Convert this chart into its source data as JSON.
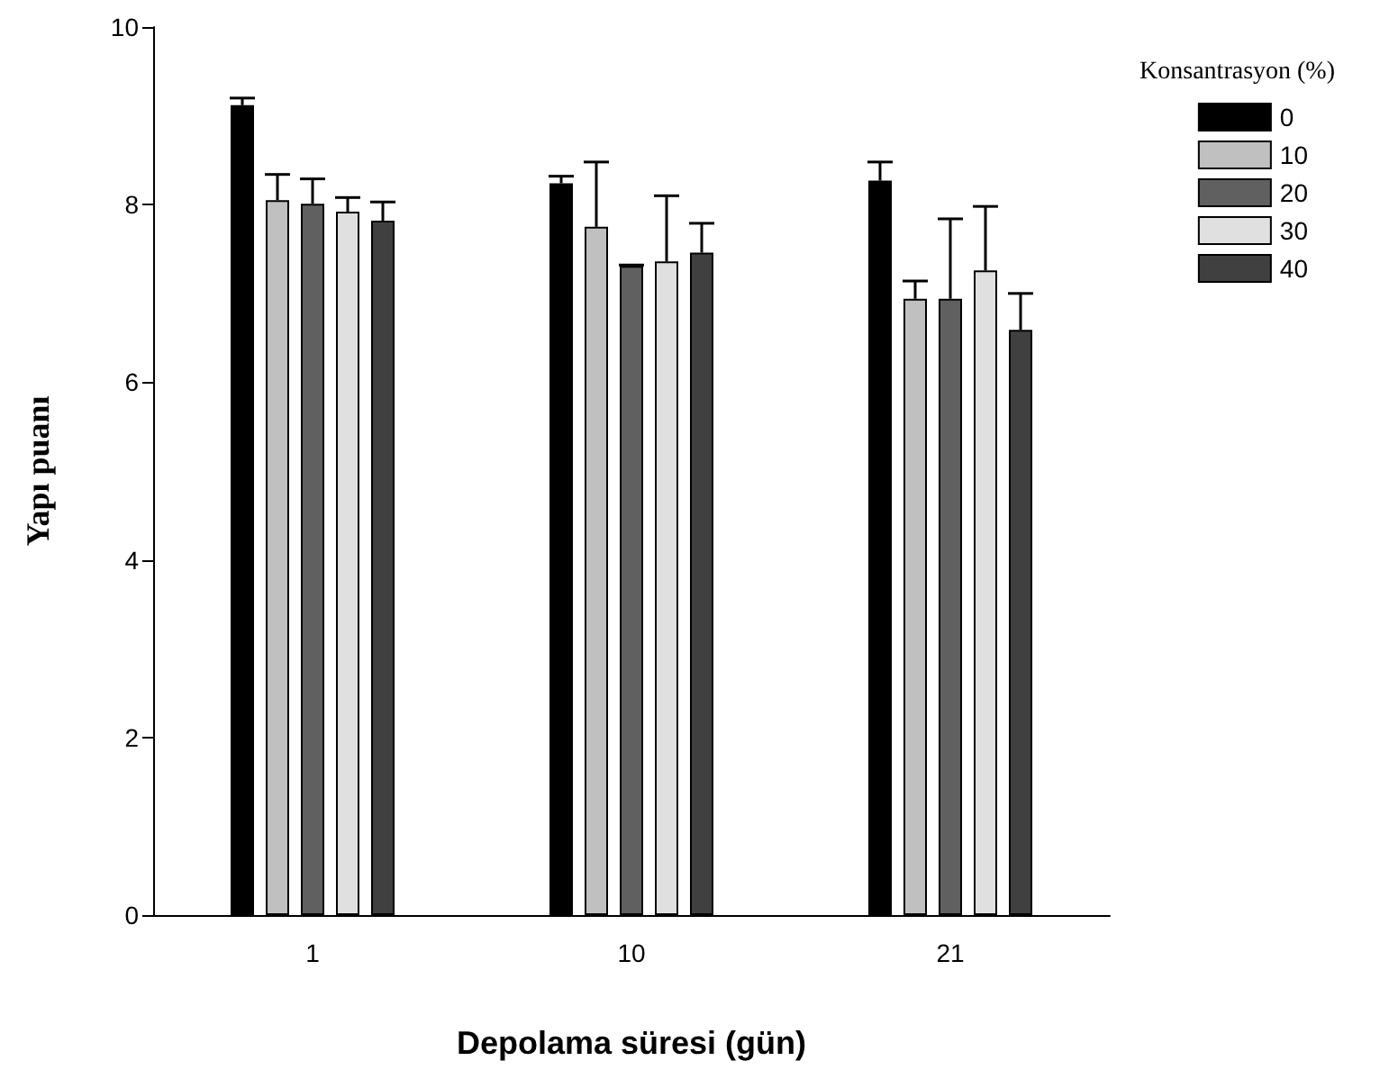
{
  "chart_data": {
    "type": "bar",
    "xlabel": "Depolama süresi (gün)",
    "ylabel": "Yapı puanı",
    "legend_title": "Konsantrasyon (%)",
    "legend": "top right",
    "categories": [
      "1",
      "10",
      "21"
    ],
    "ylim": [
      0,
      10
    ],
    "yticks": [
      0,
      2,
      4,
      6,
      8,
      10
    ],
    "grid": false,
    "series": [
      {
        "name": "0",
        "color": "#000000",
        "values": [
          9.12,
          8.24,
          8.27
        ],
        "errors": [
          [
            9.12,
            9.2
          ],
          [
            8.24,
            8.32
          ],
          [
            8.27,
            8.48
          ]
        ]
      },
      {
        "name": "10",
        "color": "#c0c0c0",
        "values": [
          8.05,
          7.75,
          6.94
        ],
        "errors": [
          [
            8.05,
            8.34
          ],
          [
            7.75,
            8.48
          ],
          [
            6.94,
            7.14
          ]
        ]
      },
      {
        "name": "20",
        "color": "#606060",
        "values": [
          8.01,
          7.31,
          6.94
        ],
        "errors": [
          [
            8.01,
            8.29
          ],
          [
            7.31,
            7.32
          ],
          [
            6.94,
            7.84
          ]
        ]
      },
      {
        "name": "30",
        "color": "#e0e0e0",
        "values": [
          7.92,
          7.36,
          7.26
        ],
        "errors": [
          [
            7.92,
            8.08
          ],
          [
            7.36,
            8.1
          ],
          [
            7.26,
            7.98
          ]
        ]
      },
      {
        "name": "40",
        "color": "#404040",
        "values": [
          7.82,
          7.46,
          6.59
        ],
        "errors": [
          [
            7.82,
            8.03
          ],
          [
            7.46,
            7.79
          ],
          [
            6.59,
            7.0
          ]
        ]
      }
    ]
  }
}
